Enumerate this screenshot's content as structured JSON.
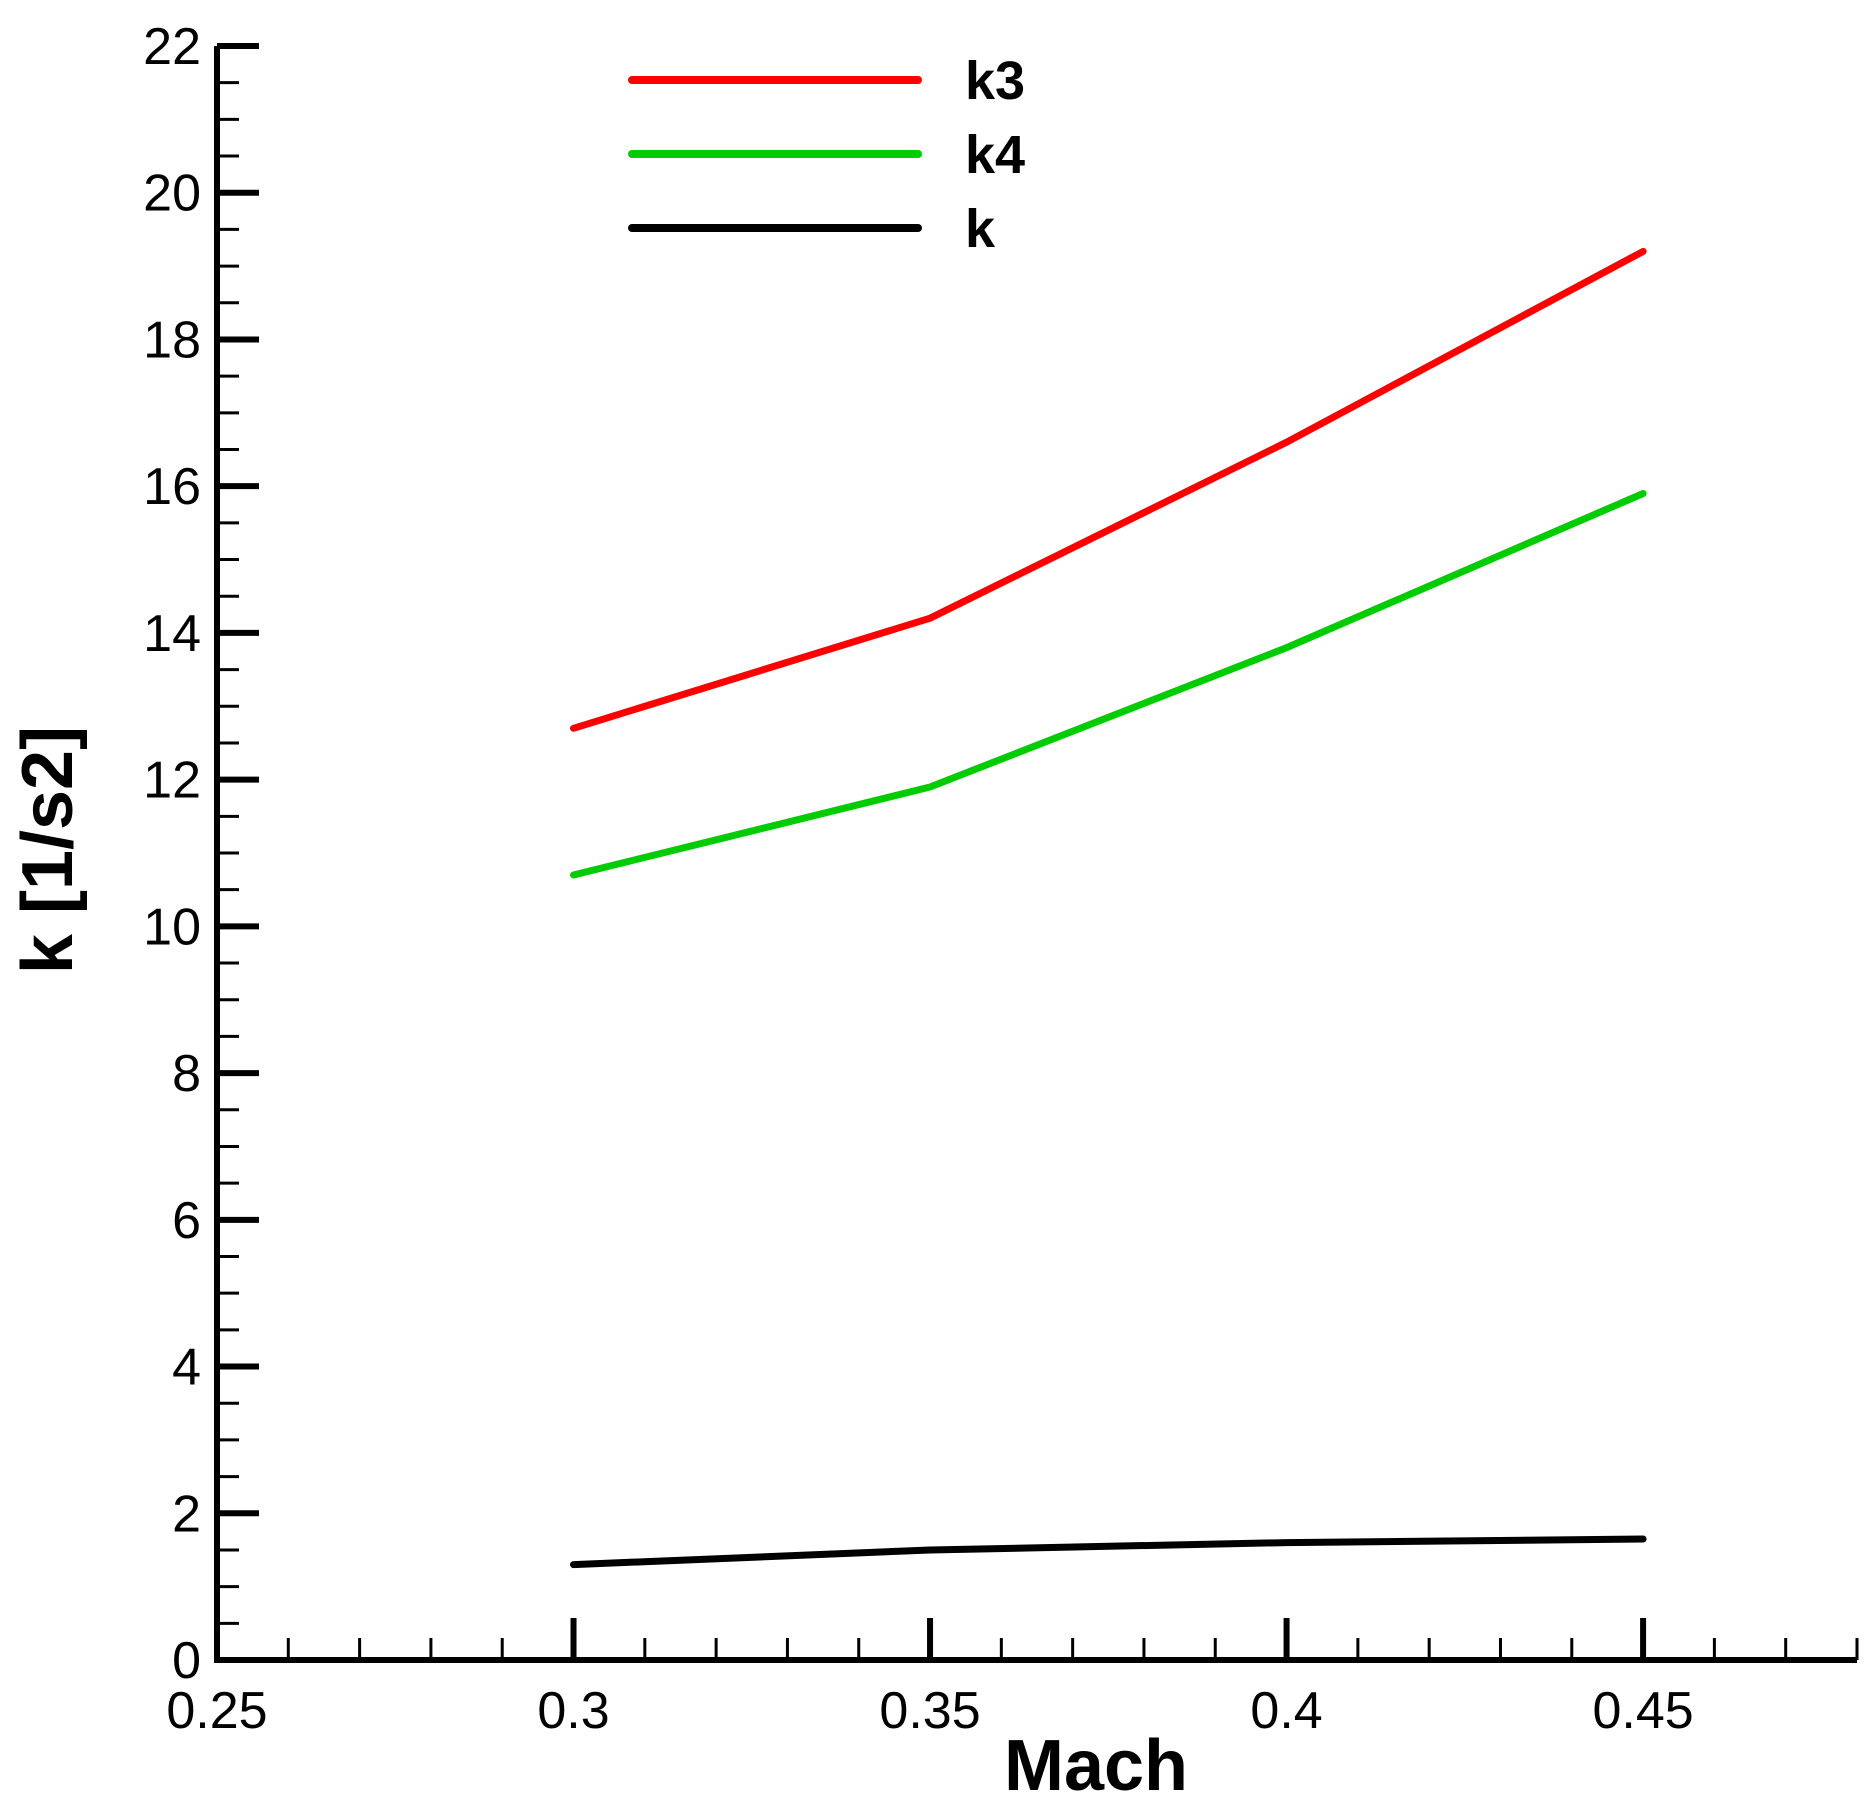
{
  "chart_data": {
    "type": "line",
    "title": "",
    "xlabel": "Mach",
    "ylabel": "k [1/s2]",
    "xlim": [
      0.25,
      0.48
    ],
    "ylim": [
      0,
      22
    ],
    "x_ticks": [
      0.25,
      0.3,
      0.35,
      0.4,
      0.45
    ],
    "x_tick_labels": [
      "0.25",
      "0.3",
      "0.35",
      "0.4",
      "0.45"
    ],
    "y_ticks": [
      0,
      2,
      4,
      6,
      8,
      10,
      12,
      14,
      16,
      18,
      20,
      22
    ],
    "y_tick_labels": [
      "0",
      "2",
      "4",
      "6",
      "8",
      "10",
      "12",
      "14",
      "16",
      "18",
      "20",
      "22"
    ],
    "grid": false,
    "legend_position": "top-center",
    "series": [
      {
        "name": "k3",
        "color": "#ff0000",
        "x": [
          0.3,
          0.35,
          0.4,
          0.45
        ],
        "y": [
          12.7,
          14.2,
          16.6,
          19.2
        ]
      },
      {
        "name": "k4",
        "color": "#00cc00",
        "x": [
          0.3,
          0.35,
          0.4,
          0.45
        ],
        "y": [
          10.7,
          11.9,
          13.8,
          15.9
        ]
      },
      {
        "name": "k",
        "color": "#000000",
        "x": [
          0.3,
          0.35,
          0.4,
          0.45
        ],
        "y": [
          1.3,
          1.5,
          1.6,
          1.65
        ]
      }
    ]
  }
}
